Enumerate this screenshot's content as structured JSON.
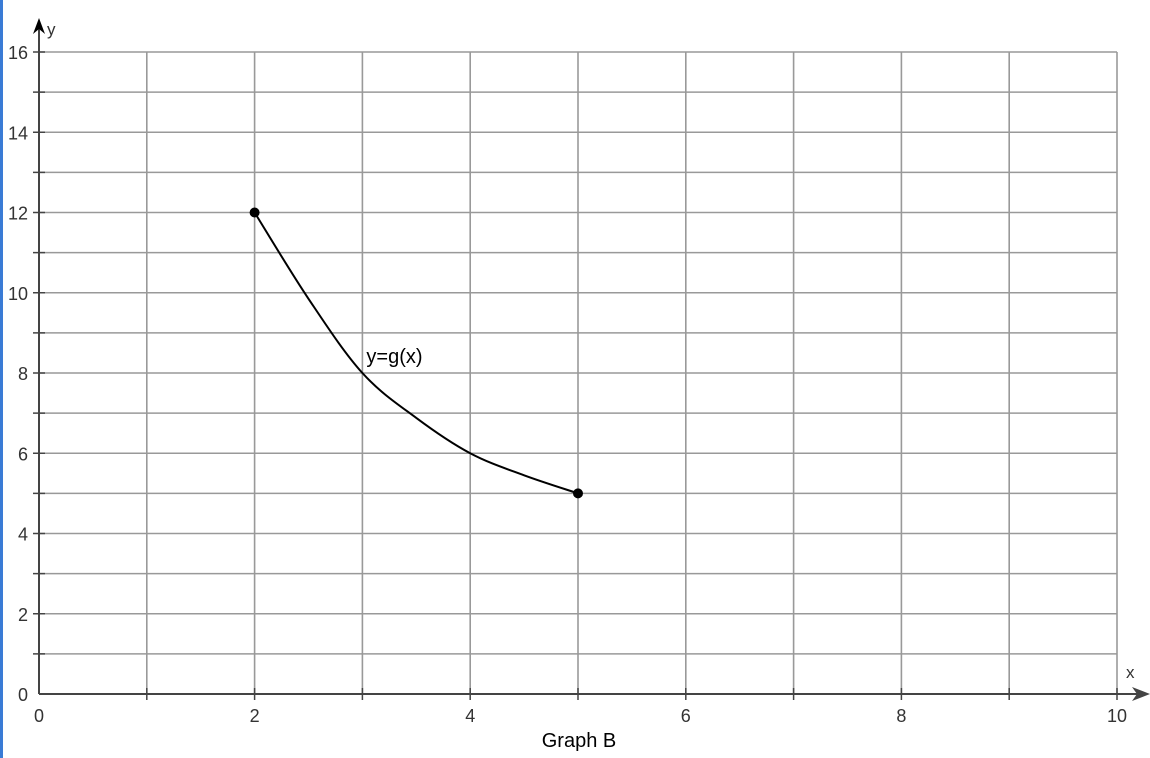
{
  "chart_data": {
    "type": "line",
    "title": "",
    "caption": "Graph B",
    "xlabel": "x",
    "ylabel": "y",
    "xlim": [
      0,
      10
    ],
    "ylim": [
      0,
      16
    ],
    "x_ticks": [
      0,
      2,
      4,
      6,
      8,
      10
    ],
    "y_ticks": [
      0,
      2,
      4,
      6,
      8,
      10,
      12,
      14,
      16
    ],
    "grid": true,
    "grid_x_step": 1,
    "grid_y_step": 1,
    "series": [
      {
        "label": "y=g(x)",
        "x": [
          2,
          2.5,
          3,
          3.5,
          4,
          4.5,
          5
        ],
        "y": [
          12,
          9.85,
          8,
          6.88,
          6,
          5.45,
          5
        ],
        "endpoints": [
          [
            2,
            12
          ],
          [
            5,
            5
          ]
        ],
        "label_at": [
          3,
          8.4
        ]
      }
    ],
    "colors": {
      "grid": "#999999",
      "axis": "#444444",
      "curve": "#000000",
      "accent": "#3a7bd5"
    }
  }
}
